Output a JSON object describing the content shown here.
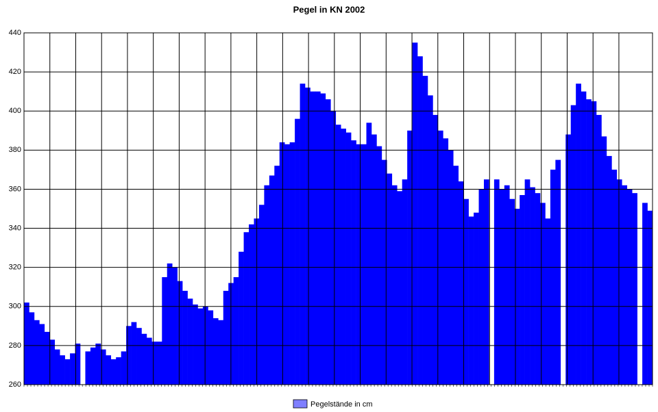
{
  "chart_data": {
    "type": "bar",
    "title": "Pegel in KN 2002",
    "series": [
      {
        "name": "Pegelstände in cm",
        "color": "#0000ff",
        "values": [
          302,
          297,
          293,
          291,
          287,
          283,
          278,
          275,
          273,
          276,
          281,
          null,
          277,
          279,
          281,
          278,
          275,
          273,
          274,
          277,
          290,
          292,
          289,
          286,
          284,
          282,
          282,
          315,
          322,
          320,
          313,
          308,
          304,
          301,
          299,
          300,
          298,
          294,
          293,
          308,
          312,
          315,
          328,
          338,
          342,
          345,
          352,
          362,
          367,
          372,
          384,
          383,
          384,
          396,
          414,
          412,
          410,
          410,
          409,
          406,
          400,
          393,
          391,
          389,
          385,
          383,
          383,
          394,
          388,
          382,
          375,
          368,
          362,
          359,
          365,
          390,
          435,
          428,
          418,
          408,
          398,
          390,
          386,
          380,
          372,
          364,
          355,
          346,
          348,
          360,
          365,
          null,
          365,
          360,
          362,
          355,
          350,
          357,
          365,
          361,
          358,
          353,
          345,
          370,
          375,
          null,
          388,
          403,
          414,
          410,
          406,
          405,
          398,
          387,
          377,
          370,
          365,
          362,
          360,
          358,
          null,
          353,
          349
        ]
      }
    ],
    "ylim": [
      260,
      440
    ],
    "yticks": [
      260,
      280,
      300,
      320,
      340,
      360,
      380,
      400,
      420,
      440
    ],
    "grid": true,
    "legend": "bottom"
  }
}
